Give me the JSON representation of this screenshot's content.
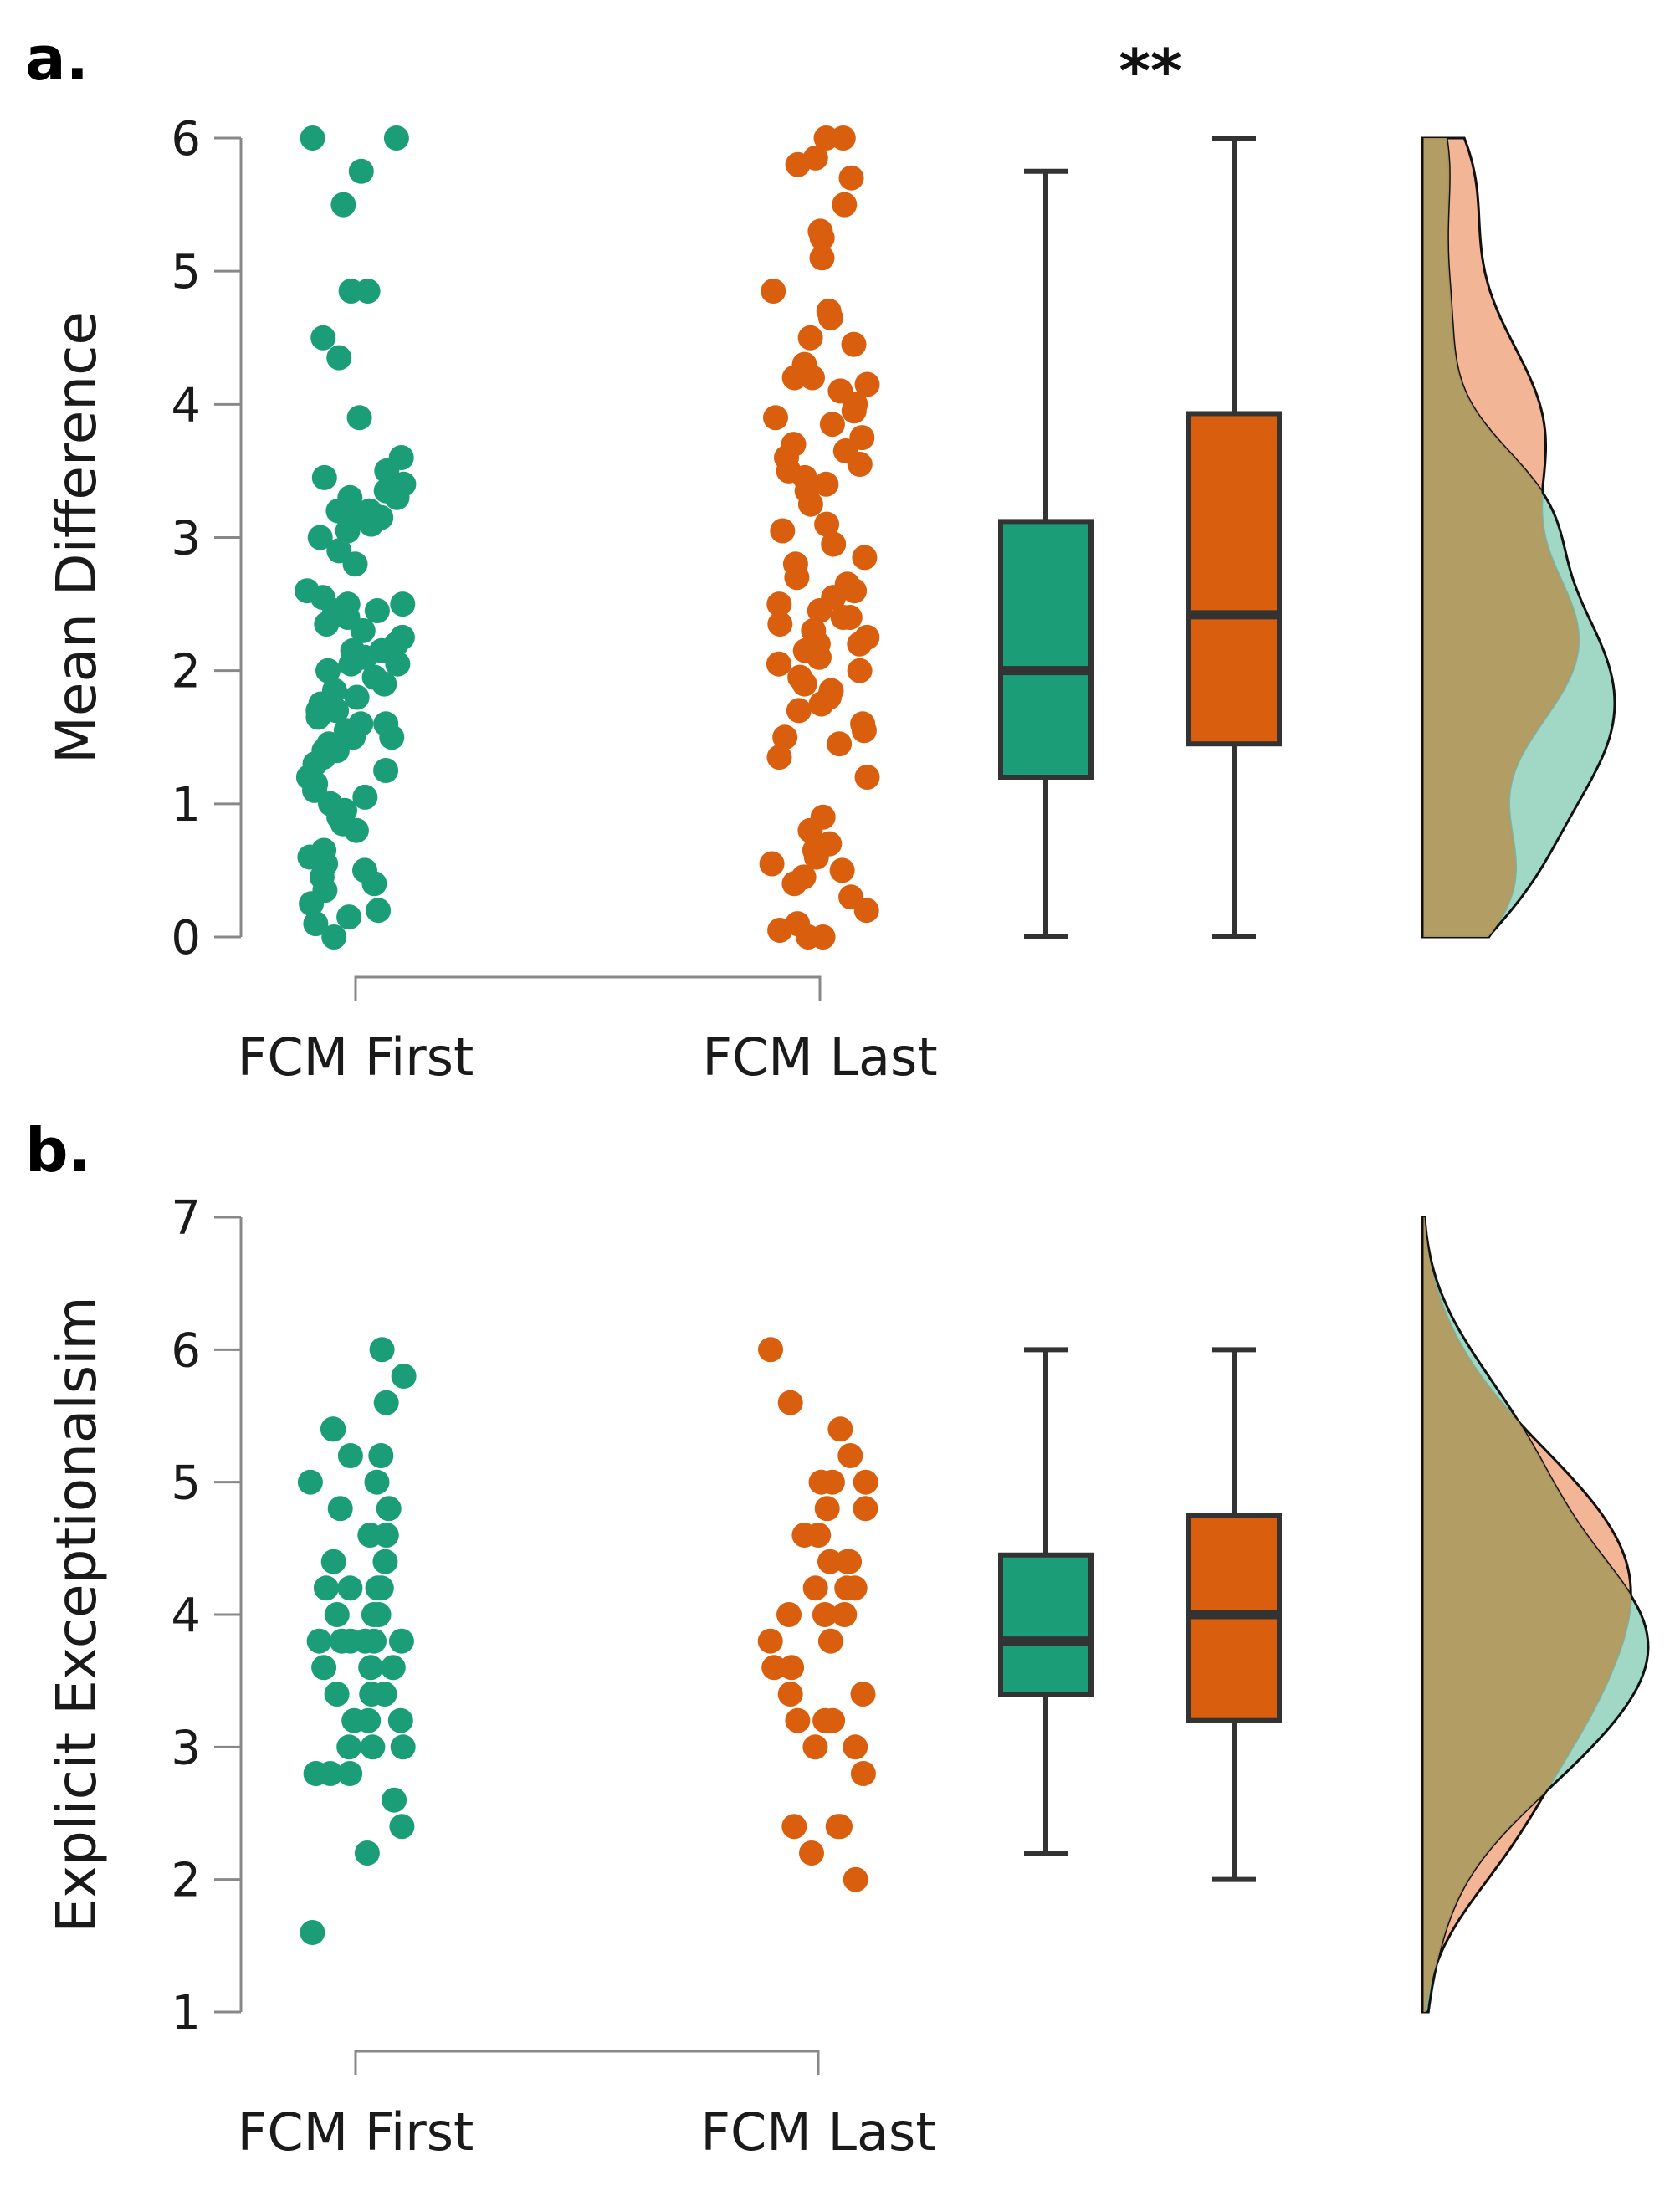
{
  "chart_data": [
    {
      "type": "raincloud",
      "panel_label": "a.",
      "ylabel": "Mean Difference",
      "ylim": [
        0,
        6
      ],
      "yticks": [
        "0",
        "1",
        "2",
        "3",
        "4",
        "5",
        "6"
      ],
      "categories": [
        "FCM First",
        "FCM Last"
      ],
      "significance": "**",
      "colors": {
        "FCM First": "#1b9e77",
        "FCM Last": "#d95f0e",
        "fill_first": "#8fd1bb",
        "fill_last": "#f0a882",
        "fill_overlap": "#b39a61"
      },
      "series": [
        {
          "name": "FCM First",
          "points": [
            6.0,
            6.0,
            5.75,
            5.5,
            4.85,
            4.85,
            4.5,
            4.35,
            3.9,
            3.6,
            3.5,
            3.45,
            3.4,
            3.35,
            3.3,
            3.3,
            3.25,
            3.2,
            3.2,
            3.15,
            3.15,
            3.1,
            3.05,
            3.0,
            2.9,
            2.8,
            2.6,
            2.55,
            2.5,
            2.5,
            2.45,
            2.45,
            2.4,
            2.35,
            2.3,
            2.25,
            2.2,
            2.15,
            2.15,
            2.1,
            2.05,
            2.05,
            2.0,
            1.95,
            1.9,
            1.85,
            1.8,
            1.75,
            1.7,
            1.7,
            1.65,
            1.6,
            1.6,
            1.55,
            1.5,
            1.5,
            1.45,
            1.4,
            1.4,
            1.35,
            1.3,
            1.25,
            1.2,
            1.15,
            1.1,
            1.05,
            1.0,
            0.95,
            0.9,
            0.85,
            0.8,
            0.65,
            0.6,
            0.55,
            0.5,
            0.45,
            0.4,
            0.35,
            0.25,
            0.2,
            0.15,
            0.1,
            0.0
          ],
          "box": {
            "min": 0.0,
            "q1": 1.2,
            "median": 2.0,
            "q3": 3.12,
            "max": 5.75
          }
        },
        {
          "name": "FCM Last",
          "points": [
            6.0,
            6.0,
            5.85,
            5.8,
            5.7,
            5.5,
            5.3,
            5.25,
            5.1,
            4.85,
            4.7,
            4.65,
            4.5,
            4.45,
            4.3,
            4.2,
            4.2,
            4.15,
            4.1,
            4.0,
            3.95,
            3.9,
            3.85,
            3.75,
            3.7,
            3.65,
            3.6,
            3.55,
            3.5,
            3.45,
            3.4,
            3.35,
            3.25,
            3.1,
            3.05,
            2.95,
            2.85,
            2.8,
            2.7,
            2.65,
            2.6,
            2.55,
            2.5,
            2.45,
            2.4,
            2.4,
            2.35,
            2.3,
            2.25,
            2.2,
            2.2,
            2.15,
            2.1,
            2.05,
            2.0,
            1.95,
            1.9,
            1.85,
            1.8,
            1.75,
            1.7,
            1.6,
            1.55,
            1.5,
            1.45,
            1.35,
            1.2,
            0.9,
            0.8,
            0.7,
            0.65,
            0.6,
            0.55,
            0.5,
            0.45,
            0.4,
            0.3,
            0.2,
            0.1,
            0.05,
            0.0,
            0.0
          ],
          "box": {
            "min": 0.0,
            "q1": 1.45,
            "median": 2.42,
            "q3": 3.93,
            "max": 6.0
          }
        }
      ]
    },
    {
      "type": "raincloud",
      "panel_label": "b.",
      "ylabel": "Explicit Exceptionalsim",
      "ylim": [
        1,
        7
      ],
      "yticks": [
        "1",
        "2",
        "3",
        "4",
        "5",
        "6",
        "7"
      ],
      "categories": [
        "FCM First",
        "FCM Last"
      ],
      "colors": {
        "FCM First": "#1b9e77",
        "FCM Last": "#d95f0e",
        "fill_first": "#8fd1bb",
        "fill_last": "#f0a882",
        "fill_overlap": "#b39a61"
      },
      "series": [
        {
          "name": "FCM First",
          "points": [
            6.0,
            5.8,
            5.6,
            5.4,
            5.4,
            5.2,
            5.2,
            5.0,
            5.0,
            4.8,
            4.8,
            4.6,
            4.6,
            4.4,
            4.4,
            4.2,
            4.2,
            4.2,
            4.2,
            4.0,
            4.0,
            4.0,
            3.8,
            3.8,
            3.8,
            3.8,
            3.8,
            3.8,
            3.6,
            3.6,
            3.6,
            3.4,
            3.4,
            3.4,
            3.2,
            3.2,
            3.2,
            3.0,
            3.0,
            3.0,
            2.8,
            2.8,
            2.8,
            2.6,
            2.4,
            2.2,
            1.6
          ],
          "box": {
            "min": 2.2,
            "q1": 3.4,
            "median": 3.8,
            "q3": 4.45,
            "max": 6.0
          }
        },
        {
          "name": "FCM Last",
          "points": [
            6.0,
            5.6,
            5.4,
            5.2,
            5.0,
            5.0,
            5.0,
            4.8,
            4.8,
            4.6,
            4.6,
            4.4,
            4.4,
            4.4,
            4.2,
            4.2,
            4.2,
            4.0,
            4.0,
            4.0,
            3.8,
            3.8,
            3.6,
            3.6,
            3.4,
            3.4,
            3.2,
            3.2,
            3.2,
            3.0,
            3.0,
            2.8,
            2.4,
            2.4,
            2.4,
            2.2,
            2.0
          ],
          "box": {
            "min": 2.0,
            "q1": 3.2,
            "median": 4.0,
            "q3": 4.75,
            "max": 6.0
          }
        }
      ]
    }
  ]
}
